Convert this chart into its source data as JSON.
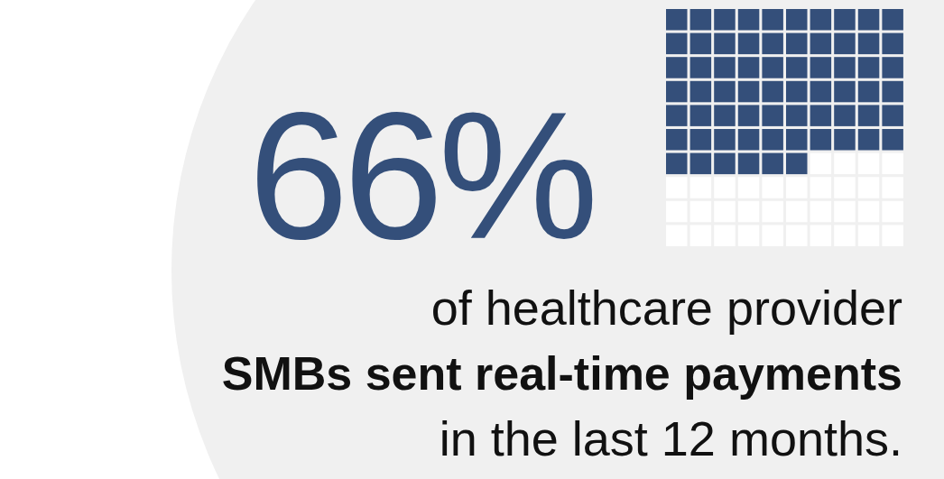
{
  "chart_data": {
    "type": "other",
    "values": [
      66
    ],
    "value_labels": [
      "66%"
    ],
    "color": "#344f7a",
    "annotations": [
      "of healthcare provider",
      "SMBs sent real-time payments",
      "in the last 12 months."
    ]
  }
}
